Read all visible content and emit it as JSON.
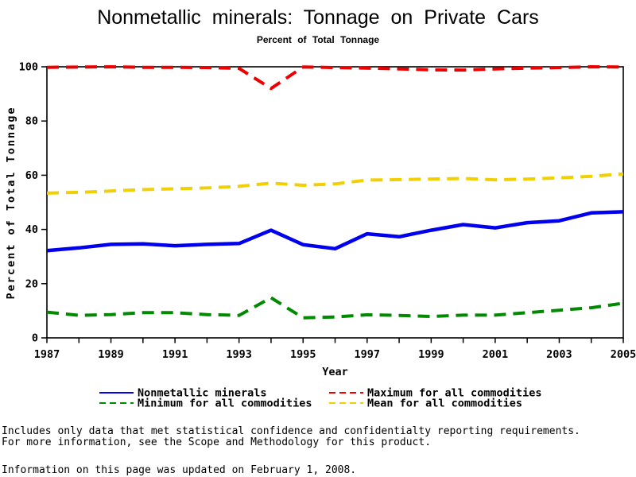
{
  "header": {
    "title": "Nonmetallic minerals: Tonnage on Private Cars",
    "subtitle": "Percent of Total Tonnage"
  },
  "chart_data": {
    "type": "line",
    "x": [
      1987,
      1988,
      1989,
      1990,
      1991,
      1992,
      1993,
      1994,
      1995,
      1996,
      1997,
      1998,
      1999,
      2000,
      2001,
      2002,
      2003,
      2004,
      2005
    ],
    "xlim": [
      1987,
      2005
    ],
    "ylim": [
      0,
      100
    ],
    "xticks": [
      1987,
      1989,
      1991,
      1993,
      1995,
      1997,
      1999,
      2001,
      2003,
      2005
    ],
    "yticks": [
      0,
      20,
      40,
      60,
      80,
      100
    ],
    "xlabel": "Year",
    "ylabel": "Percent of Total Tonnage",
    "grid": false,
    "frame": true,
    "legend_position": "bottom",
    "series": [
      {
        "id": "maximum",
        "name": "Maximum for all commodities",
        "color": "#ee0000",
        "style": "dashed",
        "values": [
          99.8,
          99.9,
          100,
          99.8,
          99.8,
          99.7,
          99.4,
          92.0,
          99.9,
          99.7,
          99.5,
          99.2,
          98.9,
          98.8,
          99.2,
          99.5,
          99.7,
          100,
          99.9
        ]
      },
      {
        "id": "mean",
        "name": "Mean for all commodities",
        "color": "#f2cf00",
        "style": "dashed",
        "values": [
          53.4,
          53.7,
          54.2,
          54.7,
          55.0,
          55.3,
          55.9,
          57.1,
          56.3,
          56.8,
          58.2,
          58.4,
          58.6,
          58.8,
          58.3,
          58.6,
          59.0,
          59.6,
          60.5
        ]
      },
      {
        "id": "minimum",
        "name": "Minimum for all commodities",
        "color": "#008a00",
        "style": "dashed",
        "values": [
          9.5,
          8.3,
          8.6,
          9.3,
          9.3,
          8.6,
          8.3,
          14.8,
          7.4,
          7.7,
          8.5,
          8.3,
          7.9,
          8.4,
          8.4,
          9.3,
          10.2,
          11.1,
          12.8
        ]
      },
      {
        "id": "nonmetallic_minerals",
        "name": "Nonmetallic minerals",
        "color": "#0000ee",
        "style": "solid",
        "values": [
          32.2,
          33.2,
          34.5,
          34.7,
          34.0,
          34.5,
          34.8,
          39.7,
          34.4,
          32.9,
          38.4,
          37.3,
          39.7,
          41.8,
          40.6,
          42.5,
          43.2,
          46.1,
          46.5
        ]
      }
    ]
  },
  "legend": {
    "items": [
      {
        "label": "Nonmetallic minerals",
        "series": "nonmetallic_minerals"
      },
      {
        "label": "Maximum for all commodities",
        "series": "maximum"
      },
      {
        "label": "Minimum for all commodities",
        "series": "minimum"
      },
      {
        "label": "Mean for all commodities",
        "series": "mean"
      }
    ]
  },
  "footnotes": {
    "line1": "Includes only data that met statistical confidence and confidentialty reporting requirements.",
    "line2": "For more information, see the Scope and Methodology for this product.",
    "line3": "Information on this page was updated on February 1, 2008."
  }
}
